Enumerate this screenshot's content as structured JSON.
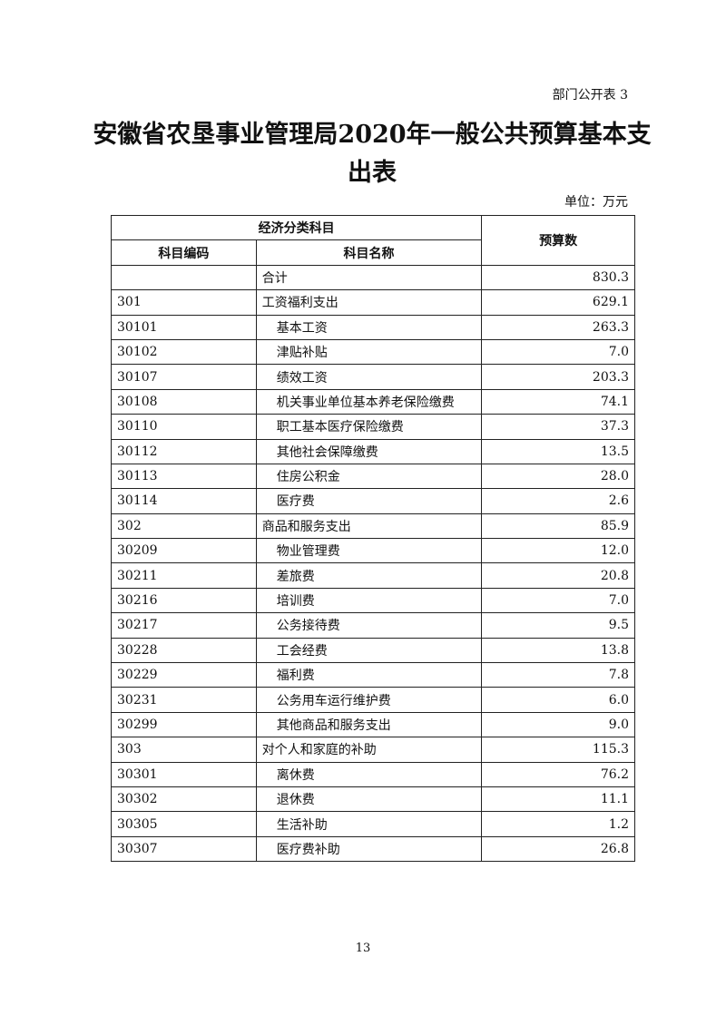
{
  "doc_tag": "部门公开表 3",
  "title": "安徽省农垦事业管理局2020年一般公共预算基本支出表",
  "unit": "单位：万元",
  "header": {
    "group": "经济分类科目",
    "code": "科目编码",
    "name": "科目名称",
    "amount": "预算数"
  },
  "rows": [
    {
      "code": "",
      "name": "合计",
      "amount": "830.3",
      "level": 0
    },
    {
      "code": "301",
      "name": "工资福利支出",
      "amount": "629.1",
      "level": 0
    },
    {
      "code": "30101",
      "name": "基本工资",
      "amount": "263.3",
      "level": 1
    },
    {
      "code": "30102",
      "name": "津贴补贴",
      "amount": "7.0",
      "level": 1
    },
    {
      "code": "30107",
      "name": "绩效工资",
      "amount": "203.3",
      "level": 1
    },
    {
      "code": "30108",
      "name": "机关事业单位基本养老保险缴费",
      "amount": "74.1",
      "level": 1
    },
    {
      "code": "30110",
      "name": "职工基本医疗保险缴费",
      "amount": "37.3",
      "level": 1
    },
    {
      "code": "30112",
      "name": "其他社会保障缴费",
      "amount": "13.5",
      "level": 1
    },
    {
      "code": "30113",
      "name": "住房公积金",
      "amount": "28.0",
      "level": 1
    },
    {
      "code": "30114",
      "name": "医疗费",
      "amount": "2.6",
      "level": 1
    },
    {
      "code": "302",
      "name": "商品和服务支出",
      "amount": "85.9",
      "level": 0
    },
    {
      "code": "30209",
      "name": "物业管理费",
      "amount": "12.0",
      "level": 1
    },
    {
      "code": "30211",
      "name": "差旅费",
      "amount": "20.8",
      "level": 1
    },
    {
      "code": "30216",
      "name": "培训费",
      "amount": "7.0",
      "level": 1
    },
    {
      "code": "30217",
      "name": "公务接待费",
      "amount": "9.5",
      "level": 1
    },
    {
      "code": "30228",
      "name": "工会经费",
      "amount": "13.8",
      "level": 1
    },
    {
      "code": "30229",
      "name": "福利费",
      "amount": "7.8",
      "level": 1
    },
    {
      "code": "30231",
      "name": "公务用车运行维护费",
      "amount": "6.0",
      "level": 1
    },
    {
      "code": "30299",
      "name": "其他商品和服务支出",
      "amount": "9.0",
      "level": 1
    },
    {
      "code": "303",
      "name": "对个人和家庭的补助",
      "amount": "115.3",
      "level": 0
    },
    {
      "code": "30301",
      "name": "离休费",
      "amount": "76.2",
      "level": 1
    },
    {
      "code": "30302",
      "name": "退休费",
      "amount": "11.1",
      "level": 1
    },
    {
      "code": "30305",
      "name": "生活补助",
      "amount": "1.2",
      "level": 1
    },
    {
      "code": "30307",
      "name": "医疗费补助",
      "amount": "26.8",
      "level": 1
    }
  ],
  "page_number": "13"
}
